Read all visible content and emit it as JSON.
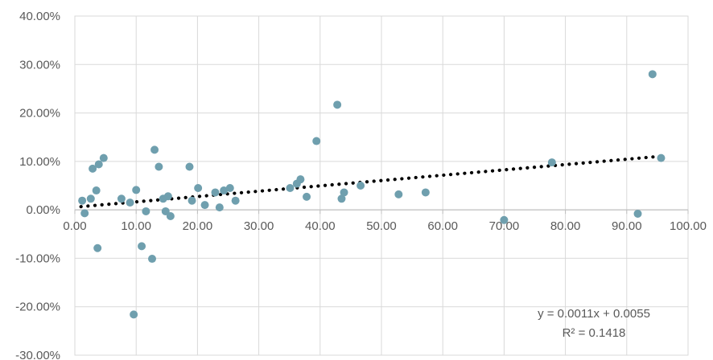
{
  "chart_data": {
    "type": "scatter",
    "title": "",
    "xlabel": "",
    "ylabel": "",
    "xlim": [
      0,
      100
    ],
    "ylim": [
      -0.3,
      0.4
    ],
    "x_ticks": [
      0,
      10,
      20,
      30,
      40,
      50,
      60,
      70,
      80,
      90,
      100
    ],
    "x_tick_labels": [
      "0.00",
      "10.00",
      "20.00",
      "30.00",
      "40.00",
      "50.00",
      "60.00",
      "70.00",
      "80.00",
      "90.00",
      "100.00"
    ],
    "y_ticks": [
      0.4,
      0.3,
      0.2,
      0.1,
      0.0,
      -0.1,
      -0.2,
      -0.3
    ],
    "y_tick_labels": [
      "40.00%",
      "30.00%",
      "20.00%",
      "10.00%",
      "0.00%",
      "-10.00%",
      "-20.00%",
      "-30.00%"
    ],
    "grid": true,
    "marker_color": "#6f9fae",
    "trendline_color": "#000000",
    "series": [
      {
        "points": [
          [
            1.2,
            0.019
          ],
          [
            1.6,
            -0.007
          ],
          [
            2.6,
            0.023
          ],
          [
            2.9,
            0.085
          ],
          [
            3.5,
            0.04
          ],
          [
            3.7,
            -0.079
          ],
          [
            3.9,
            0.094
          ],
          [
            4.7,
            0.107
          ],
          [
            7.6,
            0.023
          ],
          [
            9.0,
            0.015
          ],
          [
            9.6,
            -0.216
          ],
          [
            10.0,
            0.041
          ],
          [
            10.9,
            -0.075
          ],
          [
            11.6,
            -0.003
          ],
          [
            12.6,
            -0.101
          ],
          [
            13.0,
            0.124
          ],
          [
            13.7,
            0.089
          ],
          [
            14.4,
            0.023
          ],
          [
            14.8,
            -0.003
          ],
          [
            15.2,
            0.028
          ],
          [
            15.6,
            -0.013
          ],
          [
            18.7,
            0.089
          ],
          [
            19.1,
            0.019
          ],
          [
            20.1,
            0.045
          ],
          [
            21.2,
            0.01
          ],
          [
            22.9,
            0.036
          ],
          [
            23.6,
            0.005
          ],
          [
            24.3,
            0.04
          ],
          [
            25.3,
            0.045
          ],
          [
            26.2,
            0.019
          ],
          [
            35.1,
            0.045
          ],
          [
            36.2,
            0.054
          ],
          [
            36.8,
            0.063
          ],
          [
            37.8,
            0.027
          ],
          [
            39.4,
            0.142
          ],
          [
            42.8,
            0.217
          ],
          [
            43.5,
            0.023
          ],
          [
            43.9,
            0.036
          ],
          [
            46.6,
            0.05
          ],
          [
            52.8,
            0.032
          ],
          [
            57.2,
            0.036
          ],
          [
            70.0,
            -0.021
          ],
          [
            77.8,
            0.098
          ],
          [
            91.8,
            -0.008
          ],
          [
            94.2,
            0.28
          ],
          [
            95.6,
            0.107
          ]
        ]
      }
    ],
    "trendline": {
      "type": "linear",
      "slope": 0.0011,
      "intercept": 0.0055,
      "x_range": [
        1,
        95.6
      ]
    },
    "equation_label": "y = 0.0011x + 0.0055",
    "r2_label": "R² = 0.1418"
  }
}
